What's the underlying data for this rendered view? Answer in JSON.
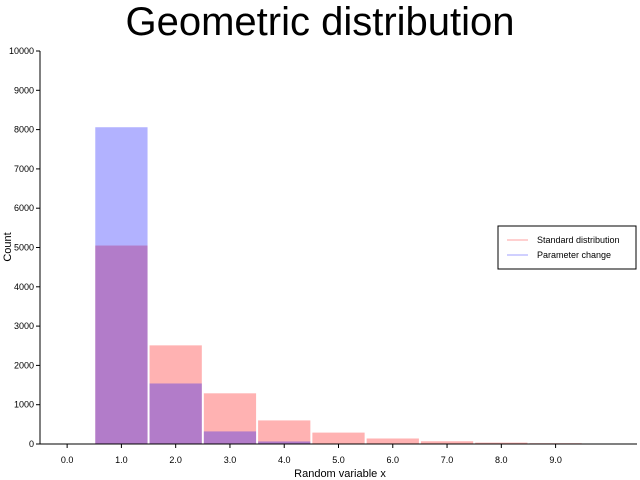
{
  "chart_data": {
    "type": "bar",
    "title": "Geometric distribution",
    "xlabel": "Random variable x",
    "ylabel": "Count",
    "xlim": [
      -0.5,
      10.5
    ],
    "ylim": [
      0,
      10000
    ],
    "x_ticks": [
      0,
      1,
      2,
      3,
      4,
      5,
      6,
      7,
      8,
      9
    ],
    "x_tick_labels": [
      "0.0",
      "1.0",
      "2.0",
      "3.0",
      "4.0",
      "5.0",
      "6.0",
      "7.0",
      "8.0",
      "9.0"
    ],
    "y_ticks": [
      0,
      1000,
      2000,
      3000,
      4000,
      5000,
      6000,
      7000,
      8000,
      9000,
      10000
    ],
    "y_tick_labels": [
      "0",
      "1000",
      "2000",
      "3000",
      "4000",
      "5000",
      "6000",
      "7000",
      "8000",
      "9000",
      "10000"
    ],
    "grid": false,
    "legend_position": "right",
    "series": [
      {
        "name": "Standard distribution",
        "color": "#ffb3b3",
        "x": [
          1,
          2,
          3,
          4,
          5,
          6,
          7,
          8,
          9,
          10
        ],
        "values": [
          5050,
          2510,
          1290,
          600,
          290,
          140,
          70,
          35,
          20,
          10
        ]
      },
      {
        "name": "Parameter change",
        "color": "#b3b3ff",
        "x": [
          1,
          2,
          3,
          4,
          5
        ],
        "values": [
          8060,
          1540,
          320,
          65,
          10
        ]
      }
    ]
  }
}
